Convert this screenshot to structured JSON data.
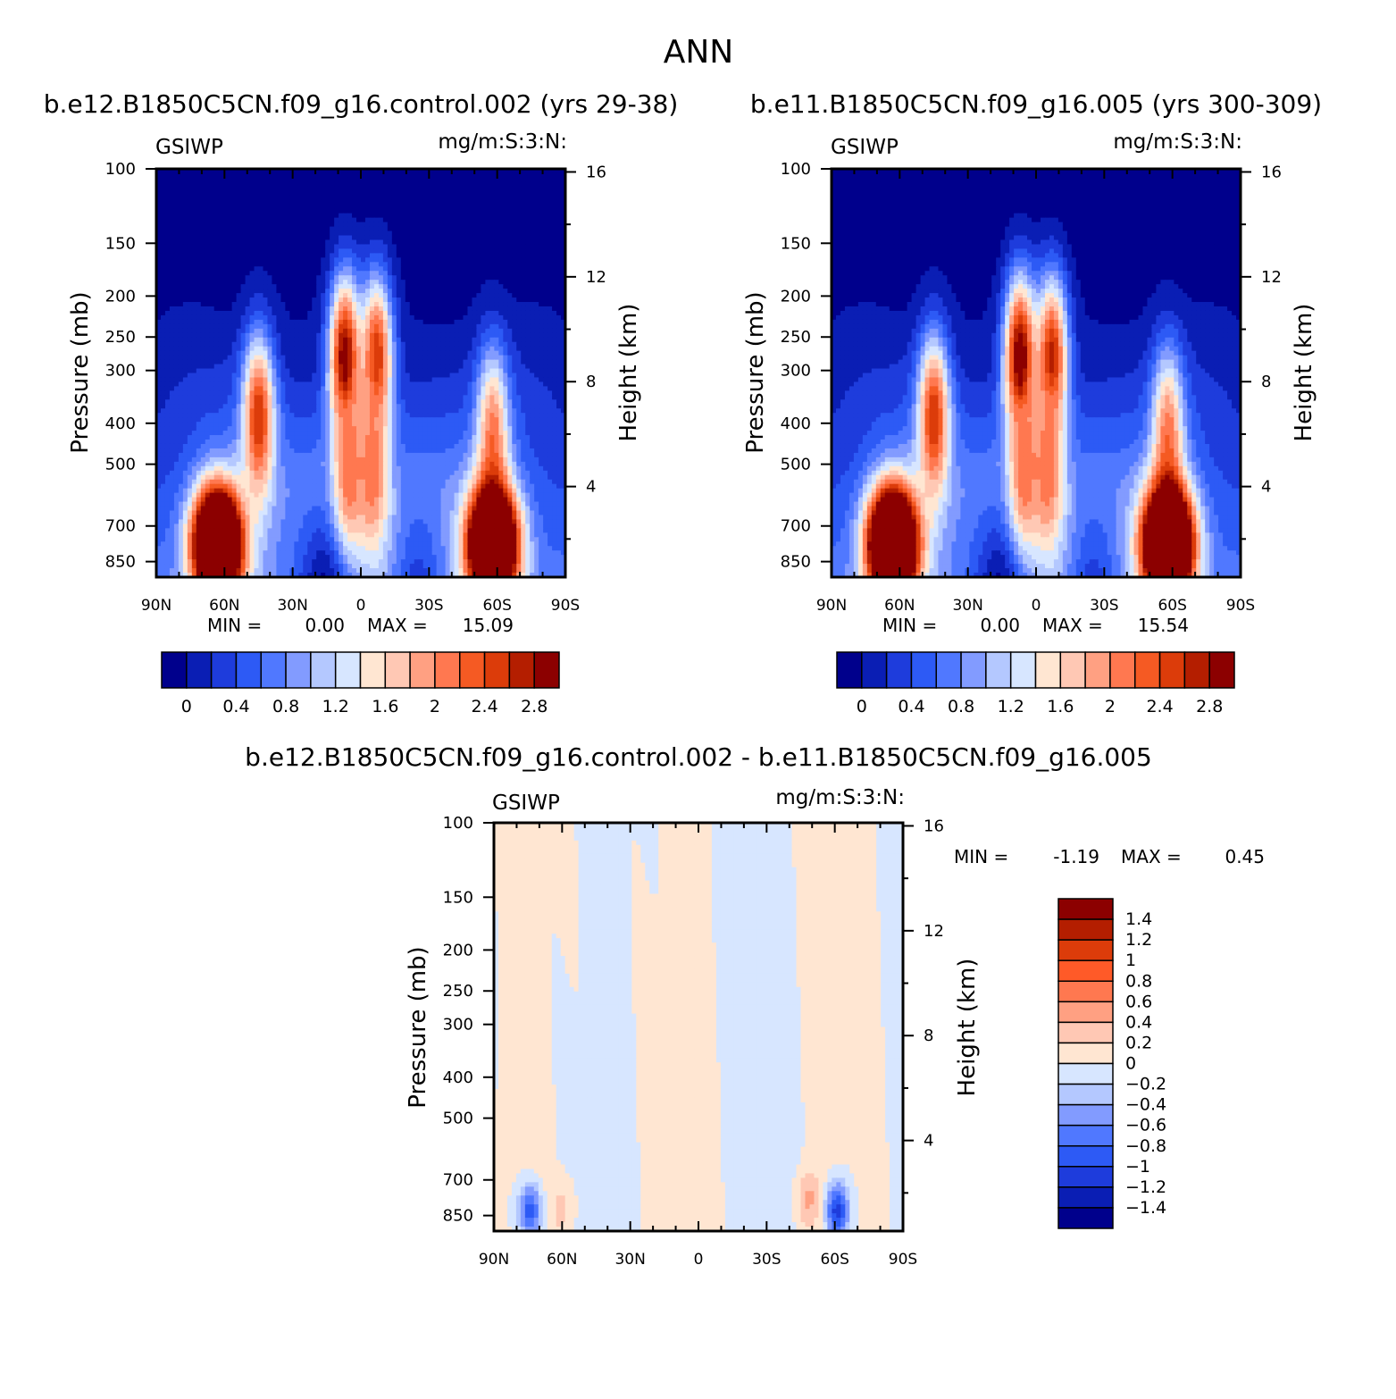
{
  "figure": {
    "title": "ANN"
  },
  "palettes": {
    "abs": [
      "#00008c",
      "#0a1eb4",
      "#1e3cdc",
      "#2d5af5",
      "#5078ff",
      "#829bff",
      "#b4c8ff",
      "#d7e6ff",
      "#ffe6d2",
      "#ffc8b4",
      "#ffa082",
      "#ff7850",
      "#f55a23",
      "#dc3c0a",
      "#b41e00",
      "#8c0000"
    ],
    "diff": [
      "#00008c",
      "#0a1eb4",
      "#1e3cdc",
      "#2d5af5",
      "#5078ff",
      "#829bff",
      "#b4c8ff",
      "#d7e6ff",
      "#ffe6d2",
      "#ffc8b4",
      "#ffa082",
      "#ff7850",
      "#ff5a28",
      "#dc3c0a",
      "#b41e00",
      "#8c0000"
    ]
  },
  "chart_data": [
    {
      "type": "contour",
      "title": "b.e12.B1850C5CN.f09_g16.control.002 (yrs 29-38)",
      "variable": "GSIWP",
      "units": "mg/m:S:3:N:",
      "xlabel": "",
      "ylabel": "Pressure (mb)",
      "ylabel_right": "Height (km)",
      "x_ticks": [
        "90N",
        "60N",
        "30N",
        "0",
        "30S",
        "60S",
        "90S"
      ],
      "y_ticks": [
        100,
        150,
        200,
        250,
        300,
        400,
        500,
        700,
        850
      ],
      "y_range": [
        100,
        925
      ],
      "y_right_ticks": [
        4,
        8,
        12,
        16
      ],
      "min_label": "MIN =",
      "min_value": "0.00",
      "max_label": "MAX =",
      "max_value": "15.09",
      "colorbar_labels": [
        "0",
        "0.4",
        "0.8",
        "1.2",
        "1.6",
        "2",
        "2.4",
        "2.8"
      ],
      "features": [
        {
          "lat": 63,
          "p": 775,
          "value": 6.0
        },
        {
          "lat": 45,
          "p": 390,
          "value": 2.8
        },
        {
          "lat": 7,
          "p": 280,
          "value": 3.2
        },
        {
          "lat": -7,
          "p": 280,
          "value": 2.8
        },
        {
          "lat": 5,
          "p": 520,
          "value": 2.4
        },
        {
          "lat": -5,
          "p": 520,
          "value": 2.4
        },
        {
          "lat": -58,
          "p": 420,
          "value": 2.3
        },
        {
          "lat": -58,
          "p": 775,
          "value": 6.0
        }
      ]
    },
    {
      "type": "contour",
      "title": "b.e11.B1850C5CN.f09_g16.005 (yrs 300-309)",
      "variable": "GSIWP",
      "units": "mg/m:S:3:N:",
      "xlabel": "",
      "ylabel": "Pressure (mb)",
      "ylabel_right": "Height (km)",
      "x_ticks": [
        "90N",
        "60N",
        "30N",
        "0",
        "30S",
        "60S",
        "90S"
      ],
      "y_ticks": [
        100,
        150,
        200,
        250,
        300,
        400,
        500,
        700,
        850
      ],
      "y_range": [
        100,
        925
      ],
      "y_right_ticks": [
        4,
        8,
        12,
        16
      ],
      "min_label": "MIN =",
      "min_value": "0.00",
      "max_label": "MAX =",
      "max_value": "15.54",
      "colorbar_labels": [
        "0",
        "0.4",
        "0.8",
        "1.2",
        "1.6",
        "2",
        "2.4",
        "2.8"
      ],
      "features": [
        {
          "lat": 63,
          "p": 775,
          "value": 6.2
        },
        {
          "lat": 45,
          "p": 390,
          "value": 2.8
        },
        {
          "lat": 7,
          "p": 280,
          "value": 3.3
        },
        {
          "lat": -7,
          "p": 280,
          "value": 2.9
        },
        {
          "lat": 5,
          "p": 520,
          "value": 2.4
        },
        {
          "lat": -5,
          "p": 520,
          "value": 2.4
        },
        {
          "lat": -58,
          "p": 420,
          "value": 2.3
        },
        {
          "lat": -58,
          "p": 775,
          "value": 6.4
        }
      ]
    },
    {
      "type": "contour",
      "title": "b.e12.B1850C5CN.f09_g16.control.002 - b.e11.B1850C5CN.f09_g16.005",
      "variable": "GSIWP",
      "units": "mg/m:S:3:N:",
      "xlabel": "",
      "ylabel": "Pressure (mb)",
      "ylabel_right": "Height (km)",
      "x_ticks": [
        "90N",
        "60N",
        "30N",
        "0",
        "30S",
        "60S",
        "90S"
      ],
      "y_ticks": [
        100,
        150,
        200,
        250,
        300,
        400,
        500,
        700,
        850
      ],
      "y_range": [
        100,
        925
      ],
      "y_right_ticks": [
        4,
        8,
        12,
        16
      ],
      "min_label": "MIN =",
      "min_value": "-1.19",
      "max_label": "MAX =",
      "max_value": "0.45",
      "colorbar_labels": [
        "1.4",
        "1.2",
        "1",
        "0.8",
        "0.6",
        "0.4",
        "0.2",
        "0",
        "-0.2",
        "-0.4",
        "-0.6",
        "-0.8",
        "-1",
        "-1.2",
        "-1.4"
      ],
      "features": [
        {
          "lat": 74,
          "p": 830,
          "value": -1.0
        },
        {
          "lat": 60,
          "p": 820,
          "value": 0.3
        },
        {
          "lat": -48,
          "p": 780,
          "value": 0.45
        },
        {
          "lat": -61,
          "p": 830,
          "value": -1.19
        }
      ]
    }
  ]
}
